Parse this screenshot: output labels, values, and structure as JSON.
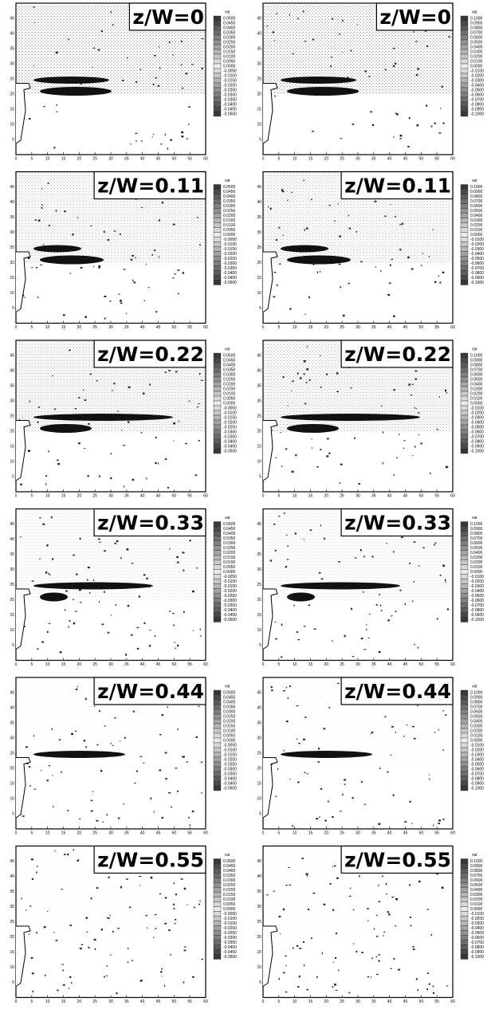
{
  "rows": [
    {
      "label": "z/W=0"
    },
    {
      "label": "z/W=0.11"
    },
    {
      "label": "z/W=0.22"
    },
    {
      "label": "z/W=0.33"
    },
    {
      "label": "z/W=0.44"
    },
    {
      "label": "z/W=0.55"
    }
  ],
  "columns": [
    {
      "colorbar_title": "var",
      "colorbar_labels": [
        "0.0500",
        "0.0450",
        "0.0400",
        "0.0350",
        "0.0300",
        "0.0250",
        "0.0200",
        "0.0150",
        "0.0100",
        "0.0050",
        "0.0000",
        "-0.0050",
        "-0.0100",
        "-0.0150",
        "-0.0200",
        "-0.0250",
        "-0.0300",
        "-0.0350",
        "-0.0400",
        "-0.0450",
        "-0.0500"
      ]
    },
    {
      "colorbar_title": "var",
      "colorbar_labels": [
        "0.1000",
        "0.0900",
        "0.0800",
        "0.0700",
        "0.0600",
        "0.0500",
        "0.0400",
        "0.0300",
        "0.0200",
        "0.0100",
        "0.0000",
        "-0.0100",
        "-0.0200",
        "-0.0300",
        "-0.0400",
        "-0.0500",
        "-0.0600",
        "-0.0700",
        "-0.0800",
        "-0.0900",
        "-0.1000"
      ]
    }
  ],
  "x_ticks": [
    "0",
    "5",
    "10",
    "15",
    "20",
    "25",
    "30",
    "35",
    "40",
    "45",
    "50",
    "55",
    "60"
  ],
  "y_ticks": [
    "45",
    "40",
    "35",
    "30",
    "25",
    "20",
    "15",
    "10",
    "5"
  ]
}
